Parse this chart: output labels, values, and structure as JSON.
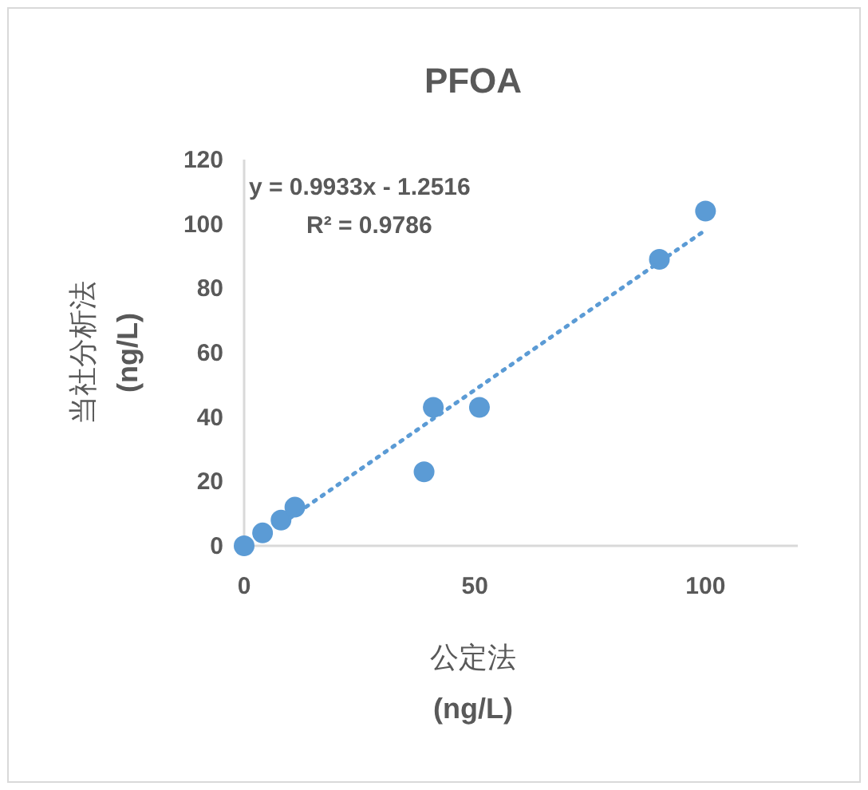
{
  "chart_data": {
    "type": "scatter",
    "title": "PFOA",
    "xlabel": "公定法\n(ng/L)",
    "ylabel": "当社分析法\n(ng/L)",
    "annotations": [
      "y = 0.9933x - 1.2516",
      "R² = 0.9786"
    ],
    "series": [
      {
        "color": "#5b9bd5",
        "marker": "circle",
        "x": [
          0,
          4,
          8,
          11,
          39,
          41,
          51,
          90,
          100
        ],
        "values": [
          0,
          4,
          8,
          12,
          23,
          43,
          43,
          89,
          104
        ]
      },
      {
        "type": "line",
        "color": "#5b9bd5",
        "line_style": "dotted",
        "marker": "none",
        "x": [
          10,
          100
        ],
        "values": [
          8.7,
          98.1
        ]
      }
    ],
    "xlim": [
      0,
      120
    ],
    "xticks": [
      0,
      50,
      100
    ],
    "ylim": [
      0,
      120
    ],
    "yticks": [
      0,
      20,
      40,
      60,
      80,
      100,
      120
    ],
    "grid": false
  }
}
